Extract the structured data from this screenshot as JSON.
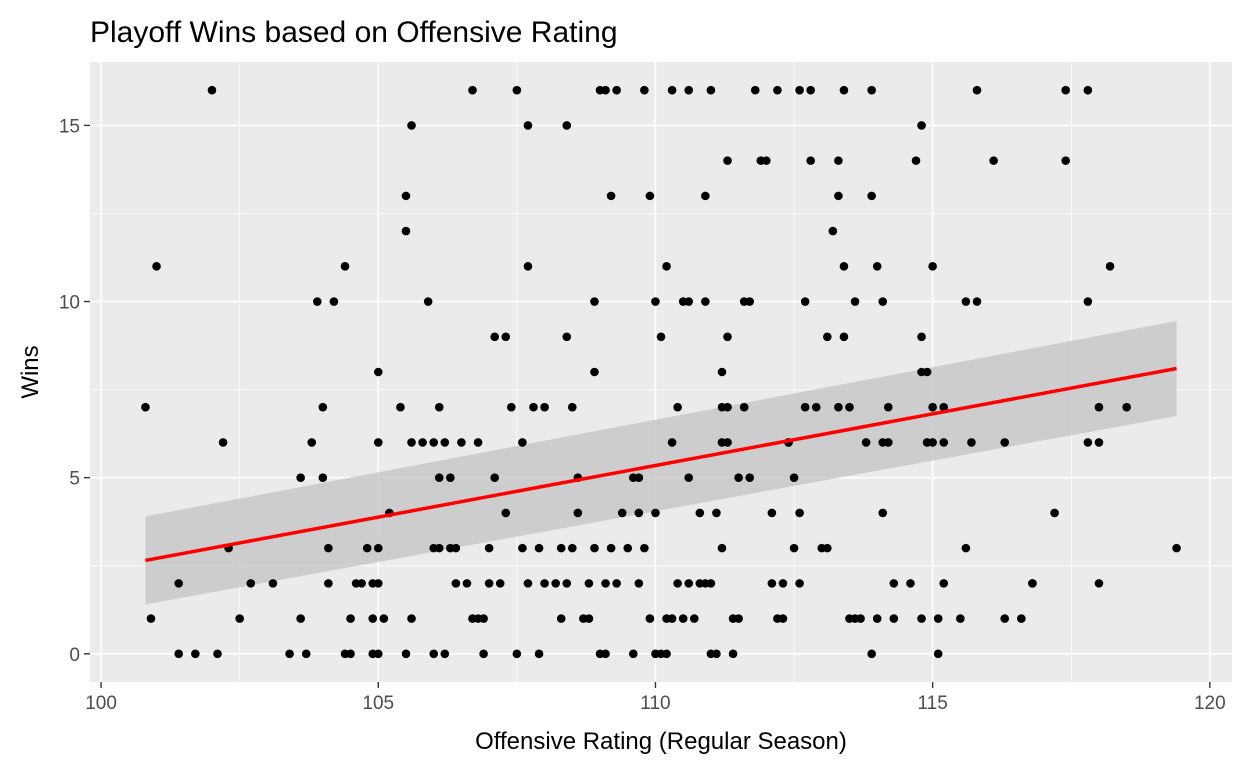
{
  "colors": {
    "panel": "#ebebeb",
    "grid_major": "#ffffff",
    "points": "#000000",
    "fit_line": "#ff0000",
    "ci_band": "#c8c8c8"
  },
  "chart_data": {
    "type": "scatter",
    "title": "Playoff Wins based on Offensive Rating",
    "xlabel": "Offensive Rating (Regular Season)",
    "ylabel": "Wins",
    "xlim": [
      99.8,
      120.4
    ],
    "ylim": [
      -0.8,
      16.8
    ],
    "x_ticks": [
      100,
      105,
      110,
      115,
      120
    ],
    "y_ticks": [
      0,
      5,
      10,
      15
    ],
    "x_tick_labels": [
      "100",
      "105",
      "110",
      "115",
      "120"
    ],
    "y_tick_labels": [
      "0",
      "5",
      "10",
      "15"
    ],
    "grid": true,
    "trend": {
      "method": "linear regression",
      "x": [
        100.8,
        119.4
      ],
      "y": [
        2.65,
        8.1
      ],
      "ci_lower": [
        1.4,
        6.75
      ],
      "ci_upper": [
        3.9,
        9.45
      ]
    },
    "points": [
      [
        100.8,
        7
      ],
      [
        100.9,
        1
      ],
      [
        101.0,
        11
      ],
      [
        101.4,
        2
      ],
      [
        101.4,
        0
      ],
      [
        101.7,
        0
      ],
      [
        102.0,
        16
      ],
      [
        102.1,
        0
      ],
      [
        102.2,
        6
      ],
      [
        102.3,
        3
      ],
      [
        102.5,
        1
      ],
      [
        102.7,
        2
      ],
      [
        103.1,
        2
      ],
      [
        103.4,
        0
      ],
      [
        103.6,
        1
      ],
      [
        103.6,
        5
      ],
      [
        103.7,
        0
      ],
      [
        103.8,
        6
      ],
      [
        103.9,
        10
      ],
      [
        104.0,
        7
      ],
      [
        104.0,
        5
      ],
      [
        104.1,
        3
      ],
      [
        104.1,
        2
      ],
      [
        104.2,
        10
      ],
      [
        104.4,
        0
      ],
      [
        104.4,
        11
      ],
      [
        104.5,
        1
      ],
      [
        104.5,
        0
      ],
      [
        104.6,
        2
      ],
      [
        104.7,
        2
      ],
      [
        104.8,
        3
      ],
      [
        104.9,
        1
      ],
      [
        104.9,
        0
      ],
      [
        105.0,
        0
      ],
      [
        104.9,
        2
      ],
      [
        105.0,
        2
      ],
      [
        105.0,
        3
      ],
      [
        105.0,
        8
      ],
      [
        105.0,
        6
      ],
      [
        105.1,
        1
      ],
      [
        105.2,
        4
      ],
      [
        105.4,
        7
      ],
      [
        105.5,
        0
      ],
      [
        105.5,
        13
      ],
      [
        105.5,
        12
      ],
      [
        105.6,
        15
      ],
      [
        105.6,
        6
      ],
      [
        105.6,
        1
      ],
      [
        105.8,
        6
      ],
      [
        105.9,
        10
      ],
      [
        106.0,
        3
      ],
      [
        106.0,
        6
      ],
      [
        106.0,
        0
      ],
      [
        106.1,
        7
      ],
      [
        106.1,
        5
      ],
      [
        106.1,
        3
      ],
      [
        106.2,
        6
      ],
      [
        106.3,
        5
      ],
      [
        106.2,
        0
      ],
      [
        106.3,
        3
      ],
      [
        106.4,
        2
      ],
      [
        106.4,
        3
      ],
      [
        106.5,
        6
      ],
      [
        106.6,
        2
      ],
      [
        106.7,
        1
      ],
      [
        106.8,
        1
      ],
      [
        106.9,
        1
      ],
      [
        106.7,
        16
      ],
      [
        106.8,
        6
      ],
      [
        106.9,
        0
      ],
      [
        107.0,
        2
      ],
      [
        107.0,
        3
      ],
      [
        107.1,
        5
      ],
      [
        107.1,
        9
      ],
      [
        107.2,
        2
      ],
      [
        107.3,
        9
      ],
      [
        107.3,
        4
      ],
      [
        107.4,
        7
      ],
      [
        107.5,
        0
      ],
      [
        107.6,
        3
      ],
      [
        107.6,
        6
      ],
      [
        107.5,
        16
      ],
      [
        107.7,
        15
      ],
      [
        107.7,
        11
      ],
      [
        107.7,
        2
      ],
      [
        107.8,
        7
      ],
      [
        107.9,
        0
      ],
      [
        107.9,
        3
      ],
      [
        108.0,
        2
      ],
      [
        108.0,
        7
      ],
      [
        108.2,
        2
      ],
      [
        108.3,
        1
      ],
      [
        108.3,
        3
      ],
      [
        108.4,
        9
      ],
      [
        108.4,
        15
      ],
      [
        108.4,
        2
      ],
      [
        108.5,
        7
      ],
      [
        108.5,
        3
      ],
      [
        108.6,
        5
      ],
      [
        108.6,
        4
      ],
      [
        108.7,
        1
      ],
      [
        108.8,
        1
      ],
      [
        108.8,
        2
      ],
      [
        108.9,
        3
      ],
      [
        108.9,
        10
      ],
      [
        108.9,
        8
      ],
      [
        109.0,
        0
      ],
      [
        109.1,
        0
      ],
      [
        109.0,
        16
      ],
      [
        109.1,
        16
      ],
      [
        109.1,
        2
      ],
      [
        109.2,
        13
      ],
      [
        109.2,
        3
      ],
      [
        109.3,
        2
      ],
      [
        109.3,
        16
      ],
      [
        109.4,
        4
      ],
      [
        109.5,
        3
      ],
      [
        109.6,
        5
      ],
      [
        109.6,
        0
      ],
      [
        109.7,
        5
      ],
      [
        109.7,
        2
      ],
      [
        109.7,
        4
      ],
      [
        109.8,
        16
      ],
      [
        109.8,
        3
      ],
      [
        109.9,
        1
      ],
      [
        109.9,
        13
      ],
      [
        110.0,
        4
      ],
      [
        110.0,
        10
      ],
      [
        110.0,
        0
      ],
      [
        110.1,
        0
      ],
      [
        110.1,
        9
      ],
      [
        110.2,
        1
      ],
      [
        110.2,
        0
      ],
      [
        110.3,
        1
      ],
      [
        110.2,
        11
      ],
      [
        110.3,
        16
      ],
      [
        110.3,
        6
      ],
      [
        110.4,
        2
      ],
      [
        110.4,
        7
      ],
      [
        110.5,
        10
      ],
      [
        110.5,
        1
      ],
      [
        110.6,
        10
      ],
      [
        110.6,
        2
      ],
      [
        110.6,
        5
      ],
      [
        110.6,
        16
      ],
      [
        110.7,
        1
      ],
      [
        110.8,
        2
      ],
      [
        110.8,
        4
      ],
      [
        110.9,
        2
      ],
      [
        110.9,
        10
      ],
      [
        111.0,
        0
      ],
      [
        110.9,
        13
      ],
      [
        111.0,
        16
      ],
      [
        111.0,
        2
      ],
      [
        111.1,
        4
      ],
      [
        111.1,
        0
      ],
      [
        111.2,
        3
      ],
      [
        111.2,
        8
      ],
      [
        111.2,
        7
      ],
      [
        111.2,
        6
      ],
      [
        111.3,
        14
      ],
      [
        111.3,
        6
      ],
      [
        111.3,
        7
      ],
      [
        111.3,
        9
      ],
      [
        111.4,
        1
      ],
      [
        111.4,
        0
      ],
      [
        111.5,
        5
      ],
      [
        111.5,
        1
      ],
      [
        111.6,
        10
      ],
      [
        111.6,
        7
      ],
      [
        111.7,
        10
      ],
      [
        111.7,
        5
      ],
      [
        111.8,
        16
      ],
      [
        111.9,
        14
      ],
      [
        112.0,
        14
      ],
      [
        112.1,
        2
      ],
      [
        112.1,
        4
      ],
      [
        112.2,
        16
      ],
      [
        112.2,
        1
      ],
      [
        112.3,
        1
      ],
      [
        112.3,
        2
      ],
      [
        112.4,
        6
      ],
      [
        112.4,
        6
      ],
      [
        112.5,
        5
      ],
      [
        112.5,
        3
      ],
      [
        112.6,
        4
      ],
      [
        112.6,
        16
      ],
      [
        112.6,
        2
      ],
      [
        112.7,
        10
      ],
      [
        112.7,
        7
      ],
      [
        112.8,
        16
      ],
      [
        112.8,
        14
      ],
      [
        112.9,
        7
      ],
      [
        113.0,
        3
      ],
      [
        113.1,
        3
      ],
      [
        113.1,
        9
      ],
      [
        113.2,
        12
      ],
      [
        113.3,
        14
      ],
      [
        113.3,
        13
      ],
      [
        113.3,
        7
      ],
      [
        113.4,
        16
      ],
      [
        113.4,
        9
      ],
      [
        113.4,
        11
      ],
      [
        113.5,
        7
      ],
      [
        113.5,
        1
      ],
      [
        113.6,
        10
      ],
      [
        113.6,
        1
      ],
      [
        113.7,
        1
      ],
      [
        113.8,
        6
      ],
      [
        113.9,
        13
      ],
      [
        113.9,
        16
      ],
      [
        113.9,
        0
      ],
      [
        114.0,
        1
      ],
      [
        114.0,
        11
      ],
      [
        114.1,
        4
      ],
      [
        114.1,
        10
      ],
      [
        114.1,
        6
      ],
      [
        114.2,
        6
      ],
      [
        114.2,
        7
      ],
      [
        114.3,
        2
      ],
      [
        114.3,
        1
      ],
      [
        114.6,
        2
      ],
      [
        114.7,
        14
      ],
      [
        114.8,
        15
      ],
      [
        114.8,
        9
      ],
      [
        114.8,
        8
      ],
      [
        114.8,
        1
      ],
      [
        114.9,
        6
      ],
      [
        114.9,
        8
      ],
      [
        115.0,
        11
      ],
      [
        115.0,
        6
      ],
      [
        115.0,
        7
      ],
      [
        115.1,
        0
      ],
      [
        115.1,
        1
      ],
      [
        115.2,
        2
      ],
      [
        115.2,
        7
      ],
      [
        115.2,
        6
      ],
      [
        115.5,
        1
      ],
      [
        115.6,
        3
      ],
      [
        115.6,
        10
      ],
      [
        115.7,
        6
      ],
      [
        115.8,
        16
      ],
      [
        115.8,
        10
      ],
      [
        116.1,
        14
      ],
      [
        116.3,
        1
      ],
      [
        116.3,
        6
      ],
      [
        116.6,
        1
      ],
      [
        116.8,
        2
      ],
      [
        116.8,
        2
      ],
      [
        117.2,
        4
      ],
      [
        117.4,
        16
      ],
      [
        117.4,
        14
      ],
      [
        117.8,
        6
      ],
      [
        117.8,
        16
      ],
      [
        117.8,
        10
      ],
      [
        118.0,
        7
      ],
      [
        118.0,
        6
      ],
      [
        118.0,
        2
      ],
      [
        118.2,
        11
      ],
      [
        118.5,
        7
      ],
      [
        119.4,
        3
      ]
    ]
  }
}
